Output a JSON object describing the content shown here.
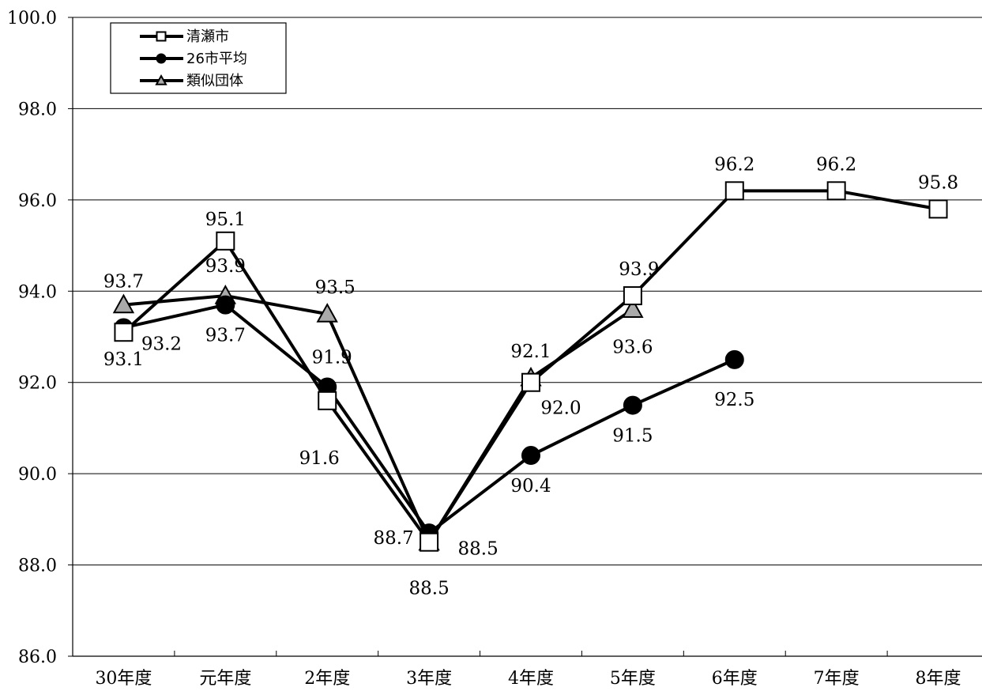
{
  "chart_data": {
    "type": "line",
    "title": "",
    "xlabel": "",
    "ylabel": "",
    "ylim": [
      86.0,
      100.0
    ],
    "yticks": [
      "86.0",
      "88.0",
      "90.0",
      "92.0",
      "94.0",
      "96.0",
      "98.0",
      "100.0"
    ],
    "grid": true,
    "legend_position": "top-left",
    "categories": [
      "30年度",
      "元年度",
      "2年度",
      "3年度",
      "4年度",
      "5年度",
      "6年度",
      "7年度",
      "8年度"
    ],
    "series": [
      {
        "name": "清瀬市",
        "marker": "square",
        "marker_fill": "#ffffff",
        "color": "#000000",
        "values": [
          93.1,
          95.1,
          91.6,
          88.5,
          92.0,
          93.9,
          96.2,
          96.2,
          95.8
        ],
        "labels": [
          "93.1",
          "95.1",
          "91.6",
          "88.5",
          "92.0",
          "93.9",
          "96.2",
          "96.2",
          "95.8"
        ]
      },
      {
        "name": "26市平均",
        "marker": "circle",
        "marker_fill": "#000000",
        "color": "#000000",
        "values": [
          93.2,
          93.7,
          91.9,
          88.7,
          90.4,
          91.5,
          92.5,
          null,
          null
        ],
        "labels": [
          "93.2",
          "93.7",
          "91.9",
          "88.7",
          "90.4",
          "91.5",
          "92.5",
          "",
          ""
        ]
      },
      {
        "name": "類似団体",
        "marker": "triangle",
        "marker_fill": "#aaaaaa",
        "color": "#000000",
        "values": [
          93.7,
          93.9,
          93.5,
          88.5,
          92.1,
          93.6,
          null,
          null,
          null
        ],
        "labels": [
          "93.7",
          "93.9",
          "93.5",
          "88.5",
          "92.1",
          "93.6",
          "",
          "",
          ""
        ]
      }
    ]
  }
}
